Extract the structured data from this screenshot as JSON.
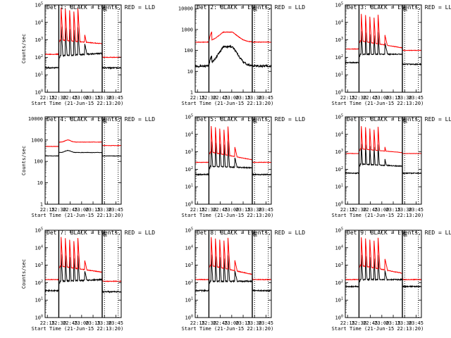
{
  "figure": {
    "xtick_labels": [
      "22:15",
      "22:30",
      "22:45",
      "23:00",
      "23:15",
      "23:30",
      "23:45"
    ],
    "xlabel": "Start Time (21-Jun-15 22:13:20)",
    "ylabel": "Counts/sec",
    "colors": {
      "events": "#000000",
      "lld": "#ff0000"
    }
  },
  "chart_data": [
    {
      "type": "line",
      "title": "Det 1: BLACK = Events, RED = LLD",
      "flag": "L",
      "yscale": "log",
      "ylim": [
        1,
        100000
      ],
      "ytick_labels": [
        "10^0",
        "10^1",
        "10^2",
        "10^3",
        "10^4",
        "10^5"
      ],
      "ytick_vals": [
        1,
        10,
        100,
        1000,
        10000,
        100000
      ],
      "xlim": [
        0,
        100
      ],
      "xticks": [
        3,
        18,
        33,
        48,
        63,
        78,
        93
      ],
      "vlines_solid": [
        18,
        75
      ],
      "vlines_dotted": [
        78,
        96
      ],
      "series": [
        {
          "name": "Events",
          "color": "#000000",
          "profile": "flare",
          "base": 25,
          "post": 25,
          "spike": 6000,
          "trough": 120,
          "hump": 600,
          "tail": 170,
          "noise": 0.08
        },
        {
          "name": "LLD",
          "color": "#ff0000",
          "profile": "flare",
          "base": 150,
          "post": 100,
          "spike": 70000,
          "trough": 1000,
          "hump": 2000,
          "tail": 600,
          "noise": 0.04
        }
      ]
    },
    {
      "type": "line",
      "title": "Det 2: BLACK = Events, RED = LLD",
      "flag": "L",
      "yscale": "log",
      "ylim": [
        1,
        15000
      ],
      "ytick_labels": [
        "1",
        "10",
        "100",
        "1000",
        "10000"
      ],
      "ytick_vals": [
        1,
        10,
        100,
        1000,
        10000
      ],
      "xlim": [
        0,
        100
      ],
      "xticks": [
        3,
        18,
        33,
        48,
        63,
        78,
        93
      ],
      "vlines_solid": [
        18,
        75
      ],
      "vlines_dotted": [
        78,
        96
      ],
      "series": [
        {
          "name": "Events",
          "color": "#000000",
          "profile": "broad",
          "base": 18,
          "peak": 150,
          "post": 18,
          "noise": 0.12
        },
        {
          "name": "LLD",
          "color": "#ff0000",
          "profile": "broad",
          "base": 250,
          "peak": 750,
          "post": 250,
          "noise": 0.03
        }
      ]
    },
    {
      "type": "line",
      "title": "Det 3: BLACK = Events, RED = LLD",
      "flag": "L",
      "yscale": "log",
      "ylim": [
        1,
        100000
      ],
      "ytick_labels": [
        "10^0",
        "10^1",
        "10^2",
        "10^3",
        "10^4",
        "10^5"
      ],
      "ytick_vals": [
        1,
        10,
        100,
        1000,
        10000,
        100000
      ],
      "xlim": [
        0,
        100
      ],
      "xticks": [
        3,
        18,
        33,
        48,
        63,
        78,
        93
      ],
      "vlines_solid": [
        18,
        75
      ],
      "vlines_dotted": [
        78,
        96
      ],
      "series": [
        {
          "name": "Events",
          "color": "#000000",
          "profile": "flare",
          "base": 50,
          "post": 40,
          "spike": 3000,
          "trough": 150,
          "hump": 700,
          "tail": 150,
          "noise": 0.06
        },
        {
          "name": "LLD",
          "color": "#ff0000",
          "profile": "flare",
          "base": 300,
          "post": 250,
          "spike": 30000,
          "trough": 900,
          "hump": 2000,
          "tail": 350,
          "noise": 0.03
        }
      ]
    },
    {
      "type": "line",
      "title": "Det 4: BLACK = Events, RED = LLD",
      "flag": "L",
      "yscale": "log",
      "ylim": [
        1,
        12000
      ],
      "ytick_labels": [
        "1",
        "10",
        "100",
        "1000",
        "10000"
      ],
      "ytick_vals": [
        1,
        10,
        100,
        1000,
        10000
      ],
      "xlim": [
        0,
        100
      ],
      "xticks": [
        3,
        18,
        33,
        48,
        63,
        78,
        93
      ],
      "vlines_solid": [
        18,
        75
      ],
      "vlines_dotted": [
        78,
        96
      ],
      "series": [
        {
          "name": "Events",
          "color": "#000000",
          "profile": "flat",
          "base": 180,
          "level": 260,
          "post": 180,
          "noise": 0.02
        },
        {
          "name": "LLD",
          "color": "#ff0000",
          "profile": "flat",
          "base": 500,
          "level": 800,
          "post": 550,
          "noise": 0.02
        }
      ]
    },
    {
      "type": "line",
      "title": "Det 5: BLACK = Events, RED = LLD",
      "flag": "L",
      "yscale": "log",
      "ylim": [
        1,
        100000
      ],
      "ytick_labels": [
        "10^0",
        "10^1",
        "10^2",
        "10^3",
        "10^4",
        "10^5"
      ],
      "ytick_vals": [
        1,
        10,
        100,
        1000,
        10000,
        100000
      ],
      "xlim": [
        0,
        100
      ],
      "xticks": [
        3,
        18,
        33,
        48,
        63,
        78,
        93
      ],
      "vlines_solid": [
        18,
        75
      ],
      "vlines_dotted": [
        78,
        96
      ],
      "series": [
        {
          "name": "Events",
          "color": "#000000",
          "profile": "flare",
          "base": 50,
          "post": 50,
          "spike": 4000,
          "trough": 150,
          "hump": 500,
          "tail": 120,
          "noise": 0.07
        },
        {
          "name": "LLD",
          "color": "#ff0000",
          "profile": "flare",
          "base": 250,
          "post": 250,
          "spike": 30000,
          "trough": 1000,
          "hump": 2000,
          "tail": 350,
          "noise": 0.03
        }
      ]
    },
    {
      "type": "line",
      "title": "Det 6: BLACK = Events, RED = LLD",
      "flag": "L",
      "yscale": "log",
      "ylim": [
        1,
        100000
      ],
      "ytick_labels": [
        "10^0",
        "10^1",
        "10^2",
        "10^3",
        "10^4",
        "10^5"
      ],
      "ytick_vals": [
        1,
        10,
        100,
        1000,
        10000,
        100000
      ],
      "xlim": [
        0,
        100
      ],
      "xticks": [
        3,
        18,
        33,
        48,
        63,
        78,
        93
      ],
      "vlines_solid": [
        18,
        75
      ],
      "vlines_dotted": [
        78,
        96
      ],
      "series": [
        {
          "name": "Events",
          "color": "#000000",
          "profile": "flare",
          "base": 60,
          "post": 60,
          "spike": 3000,
          "trough": 200,
          "hump": 400,
          "tail": 150,
          "noise": 0.06
        },
        {
          "name": "LLD",
          "color": "#ff0000",
          "profile": "flare",
          "base": 800,
          "post": 800,
          "spike": 30000,
          "trough": 1500,
          "hump": 2000,
          "tail": 900,
          "noise": 0.02
        }
      ]
    },
    {
      "type": "line",
      "title": "Det 7: BLACK = Events, RED = LLD",
      "flag": "L",
      "yscale": "log",
      "ylim": [
        1,
        100000
      ],
      "ytick_labels": [
        "10^0",
        "10^1",
        "10^2",
        "10^3",
        "10^4",
        "10^5"
      ],
      "ytick_vals": [
        1,
        10,
        100,
        1000,
        10000,
        100000
      ],
      "xlim": [
        0,
        100
      ],
      "xticks": [
        3,
        18,
        33,
        48,
        63,
        78,
        93
      ],
      "vlines_solid": [
        18,
        75
      ],
      "vlines_dotted": [
        78,
        96
      ],
      "series": [
        {
          "name": "Events",
          "color": "#000000",
          "profile": "flare",
          "base": 35,
          "post": 30,
          "spike": 4000,
          "trough": 120,
          "hump": 500,
          "tail": 150,
          "noise": 0.08
        },
        {
          "name": "LLD",
          "color": "#ff0000",
          "profile": "flare",
          "base": 150,
          "post": 120,
          "spike": 40000,
          "trough": 900,
          "hump": 2000,
          "tail": 400,
          "noise": 0.04
        }
      ]
    },
    {
      "type": "line",
      "title": "Det 8: BLACK = Events, RED = LLD",
      "flag": "L",
      "yscale": "log",
      "ylim": [
        1,
        100000
      ],
      "ytick_labels": [
        "10^0",
        "10^1",
        "10^2",
        "10^3",
        "10^4",
        "10^5"
      ],
      "ytick_vals": [
        1,
        10,
        100,
        1000,
        10000,
        100000
      ],
      "xlim": [
        0,
        100
      ],
      "xticks": [
        3,
        18,
        33,
        48,
        63,
        78,
        93
      ],
      "vlines_solid": [
        18,
        75
      ],
      "vlines_dotted": [
        78,
        96
      ],
      "series": [
        {
          "name": "Events",
          "color": "#000000",
          "profile": "flare",
          "base": 35,
          "post": 35,
          "spike": 4000,
          "trough": 120,
          "hump": 500,
          "tail": 120,
          "noise": 0.08
        },
        {
          "name": "LLD",
          "color": "#ff0000",
          "profile": "flare",
          "base": 150,
          "post": 150,
          "spike": 40000,
          "trough": 1000,
          "hump": 2000,
          "tail": 300,
          "noise": 0.04
        }
      ]
    },
    {
      "type": "line",
      "title": "Det 9: BLACK = Events, RED = LLD",
      "flag": "L",
      "yscale": "log",
      "ylim": [
        1,
        100000
      ],
      "ytick_labels": [
        "10^0",
        "10^1",
        "10^2",
        "10^3",
        "10^4",
        "10^5"
      ],
      "ytick_vals": [
        1,
        10,
        100,
        1000,
        10000,
        100000
      ],
      "xlim": [
        0,
        100
      ],
      "xticks": [
        3,
        18,
        33,
        48,
        63,
        78,
        93
      ],
      "vlines_solid": [
        18,
        75
      ],
      "vlines_dotted": [
        78,
        96
      ],
      "series": [
        {
          "name": "Events",
          "color": "#000000",
          "profile": "flare",
          "base": 60,
          "post": 60,
          "spike": 4000,
          "trough": 150,
          "hump": 500,
          "tail": 150,
          "noise": 0.07
        },
        {
          "name": "LLD",
          "color": "#ff0000",
          "profile": "flare",
          "base": 150,
          "post": 150,
          "spike": 40000,
          "trough": 1000,
          "hump": 2500,
          "tail": 350,
          "noise": 0.04
        }
      ]
    }
  ]
}
